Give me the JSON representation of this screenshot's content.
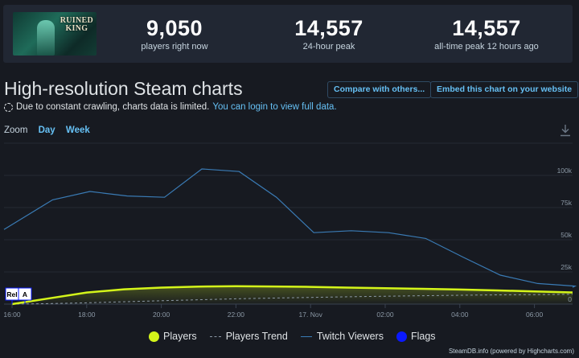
{
  "game": {
    "logo_line1": "RUINED",
    "logo_line2": "KING"
  },
  "stats": [
    {
      "value": "9,050",
      "label": "players right now"
    },
    {
      "value": "14,557",
      "label": "24-hour peak"
    },
    {
      "value": "14,557",
      "label": "all-time peak 12 hours ago"
    }
  ],
  "title": "High-resolution Steam charts",
  "notice": {
    "text": "Due to constant crawling, charts data is limited.",
    "link": "You can login to view full data."
  },
  "buttons": {
    "compare": "Compare with others...",
    "embed": "Embed this chart on your website"
  },
  "zoom": {
    "label": "Zoom",
    "day": "Day",
    "week": "Week"
  },
  "colors": {
    "players": "#d4f51a",
    "twitch": "#3a7bb5",
    "trend": "#8b98a5",
    "flags": "#0a19ff",
    "accent": "#66c0f4"
  },
  "chart_data": {
    "type": "line",
    "title": "",
    "x_labels": [
      "16:00",
      "18:00",
      "20:00",
      "22:00",
      "17. Nov",
      "02:00",
      "04:00",
      "06:00"
    ],
    "y_right_ticks": [
      "0",
      "25k",
      "50k",
      "75k",
      "100k"
    ],
    "y_right_values": [
      0,
      25000,
      50000,
      75000,
      100000
    ],
    "ylim": [
      0,
      125000
    ],
    "x_hours": [
      0,
      1,
      2,
      3,
      4,
      5,
      6,
      7,
      8,
      9,
      10,
      11,
      12,
      13,
      14,
      15
    ],
    "series": [
      {
        "name": "Players",
        "values": [
          0,
          4500,
          9000,
          11500,
          12800,
          13600,
          13900,
          13700,
          13400,
          12800,
          12300,
          11900,
          11300,
          10600,
          9900,
          9050
        ]
      },
      {
        "name": "Players Trend",
        "values": [
          0,
          400,
          1000,
          1800,
          2600,
          3400,
          4100,
          4700,
          5200,
          5700,
          6100,
          6500,
          6900,
          7200,
          7400,
          7600
        ]
      },
      {
        "name": "Twitch Viewers",
        "values": [
          58000,
          81000,
          87500,
          84000,
          83000,
          105000,
          103000,
          83000,
          55500,
          57000,
          55500,
          51000,
          36500,
          22500,
          16000,
          14000
        ]
      }
    ],
    "flags": [
      "Rel",
      "A"
    ],
    "legend": [
      "Players",
      "Players Trend",
      "Twitch Viewers",
      "Flags"
    ]
  },
  "credits": "SteamDB.info (powered by Highcharts.com)"
}
